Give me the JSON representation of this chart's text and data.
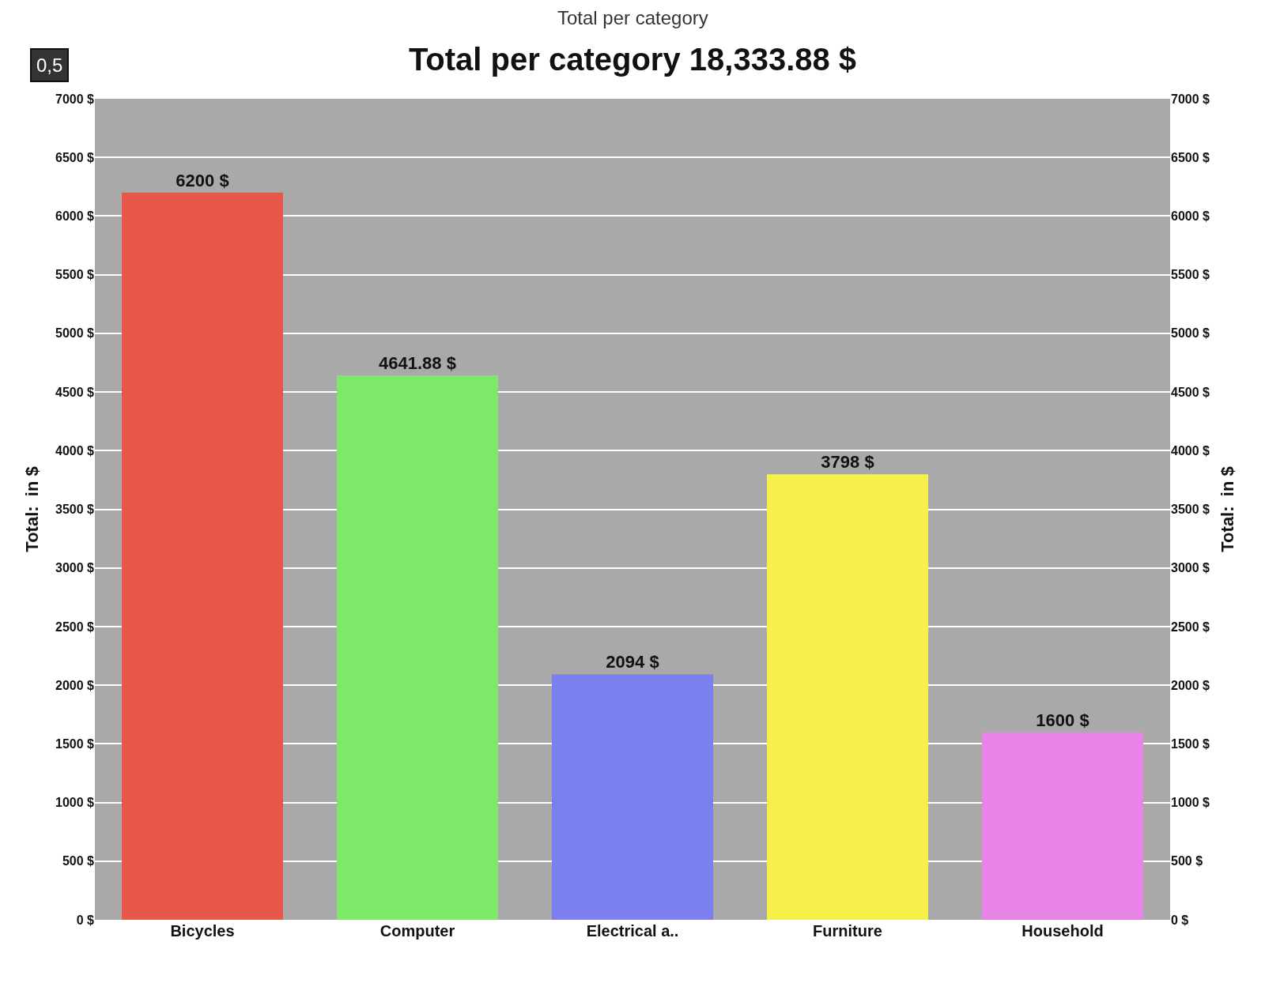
{
  "chart_data": {
    "type": "bar",
    "title": "Total per category 18,333.88 $",
    "categories": [
      "Bicycles",
      "Computer",
      "Electrical a..",
      "Furniture",
      "Household"
    ],
    "values": [
      6200,
      4641.88,
      2094,
      3798,
      1600
    ],
    "value_labels": [
      "6200 $",
      "4641.88 $",
      "2094 $",
      "3798 $",
      "1600 $"
    ],
    "colors": [
      "#e8574a",
      "#7ee868",
      "#7b80ee",
      "#f5f04a",
      "#e884e8"
    ],
    "ylabel": "Total:  in $",
    "y2label": "Total:  in $",
    "ylim": [
      0,
      7000
    ],
    "yticks": [
      {
        "value": 0,
        "label": "0 $"
      },
      {
        "value": 500,
        "label": "500 $"
      },
      {
        "value": 1000,
        "label": "1000 $"
      },
      {
        "value": 1500,
        "label": "1500 $"
      },
      {
        "value": 2000,
        "label": "2000 $"
      },
      {
        "value": 2500,
        "label": "2500 $"
      },
      {
        "value": 3000,
        "label": "3000 $"
      },
      {
        "value": 3500,
        "label": "3500 $"
      },
      {
        "value": 4000,
        "label": "4000 $"
      },
      {
        "value": 4500,
        "label": "4500 $"
      },
      {
        "value": 5000,
        "label": "5000 $"
      },
      {
        "value": 5500,
        "label": "5500 $"
      },
      {
        "value": 6000,
        "label": "6000 $"
      },
      {
        "value": 6500,
        "label": "6500 $"
      },
      {
        "value": 7000,
        "label": "7000 $"
      }
    ],
    "y2lim": [
      0,
      7000
    ],
    "y2ticks": [
      {
        "value": 0,
        "label": "0 $"
      },
      {
        "value": 500,
        "label": "500 $"
      },
      {
        "value": 1000,
        "label": "1000 $"
      },
      {
        "value": 1500,
        "label": "1500 $"
      },
      {
        "value": 2000,
        "label": "2000 $"
      },
      {
        "value": 2500,
        "label": "2500 $"
      },
      {
        "value": 3000,
        "label": "3000 $"
      },
      {
        "value": 3500,
        "label": "3500 $"
      },
      {
        "value": 4000,
        "label": "4000 $"
      },
      {
        "value": 4500,
        "label": "4500 $"
      },
      {
        "value": 5000,
        "label": "5000 $"
      },
      {
        "value": 5500,
        "label": "5500 $"
      },
      {
        "value": 6000,
        "label": "6000 $"
      },
      {
        "value": 6500,
        "label": "6500 $"
      },
      {
        "value": 7000,
        "label": "7000 $"
      }
    ],
    "grid": "y",
    "annotations": [
      "Total per category",
      "0,5"
    ]
  }
}
